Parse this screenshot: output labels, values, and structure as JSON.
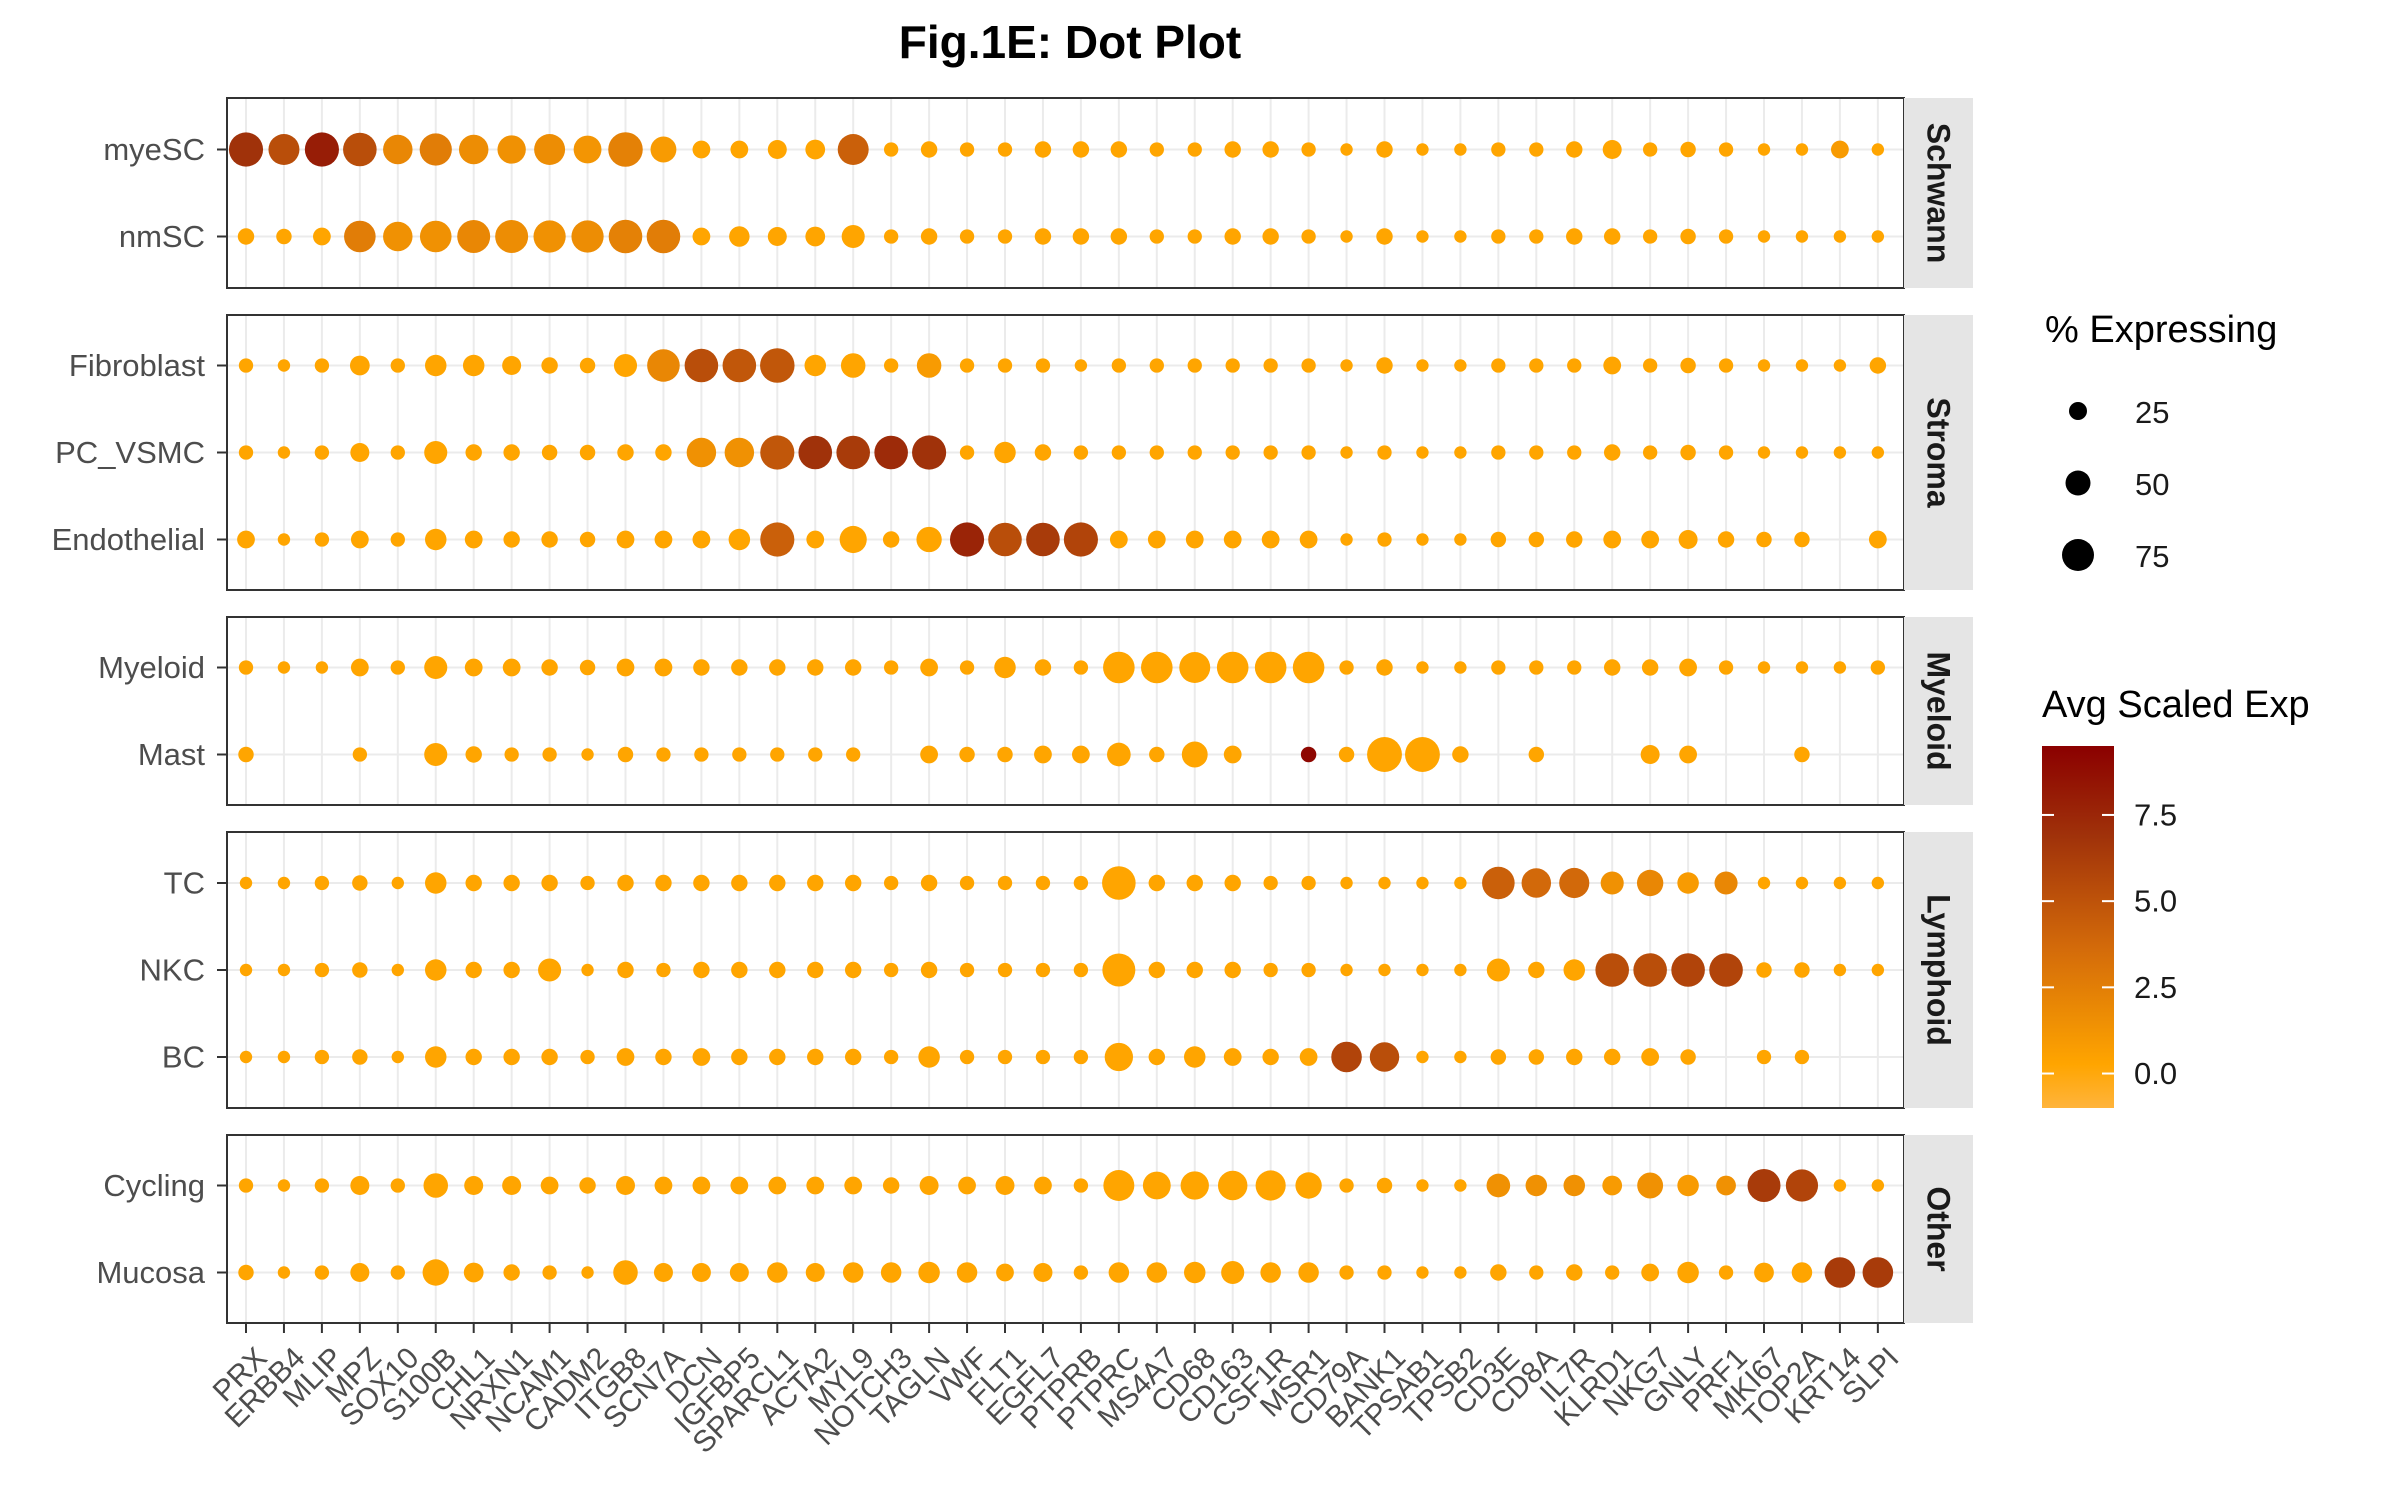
{
  "chart_data": {
    "type": "scatter",
    "title": "Fig.1E: Dot Plot",
    "xlabel": "",
    "ylabel": "",
    "genes": [
      "PRX",
      "ERBB4",
      "MLIP",
      "MPZ",
      "SOX10",
      "S100B",
      "CHL1",
      "NRXN1",
      "NCAM1",
      "CADM2",
      "ITGB8",
      "SCN7A",
      "DCN",
      "IGFBP5",
      "SPARCL1",
      "ACTA2",
      "MYL9",
      "NOTCH3",
      "TAGLN",
      "VWF",
      "FLT1",
      "EGFL7",
      "PTPRB",
      "PTPRC",
      "MS4A7",
      "CD68",
      "CD163",
      "CSF1R",
      "MSR1",
      "CD79A",
      "BANK1",
      "TPSAB1",
      "TPSB2",
      "CD3E",
      "CD8A",
      "IL7R",
      "KLRD1",
      "NKG7",
      "GNLY",
      "PRF1",
      "MKI67",
      "TOP2A",
      "KRT14",
      "SLPI"
    ],
    "facets": [
      {
        "name": "Schwann",
        "rows": [
          "myeSC",
          "nmSC"
        ]
      },
      {
        "name": "Stroma",
        "rows": [
          "Fibroblast",
          "PC_VSMC",
          "Endothelial"
        ]
      },
      {
        "name": "Myeloid",
        "rows": [
          "Myeloid",
          "Mast"
        ]
      },
      {
        "name": "Lymphoid",
        "rows": [
          "TC",
          "NKC",
          "BC"
        ]
      },
      {
        "name": "Other",
        "rows": [
          "Cycling",
          "Mucosa"
        ]
      }
    ],
    "size_legend": {
      "title": "% Expressing",
      "values": [
        25,
        50,
        75
      ]
    },
    "color_legend": {
      "title": "Avg Scaled Exp",
      "ticks": [
        7.5,
        5.0,
        2.5,
        0.0
      ],
      "tick_labels": [
        "7.5",
        "5.0",
        "2.5",
        "0.0"
      ],
      "range": [
        -1,
        9.5
      ],
      "colors": [
        "#FFB43C",
        "#FFA500",
        "#D2690A",
        "#A0320A",
        "#8B0000"
      ]
    },
    "pct_expressing": {
      "myeSC": [
        78,
        62,
        78,
        75,
        55,
        68,
        55,
        50,
        62,
        48,
        80,
        40,
        15,
        15,
        18,
        20,
        62,
        8,
        12,
        8,
        8,
        12,
        12,
        12,
        8,
        8,
        12,
        12,
        8,
        5,
        12,
        5,
        5,
        8,
        8,
        12,
        18,
        8,
        10,
        8,
        5,
        5,
        15,
        5
      ],
      "nmSC": [
        12,
        10,
        15,
        65,
        55,
        65,
        72,
        72,
        68,
        68,
        75,
        75,
        15,
        22,
        18,
        20,
        30,
        8,
        12,
        8,
        8,
        12,
        12,
        12,
        8,
        8,
        12,
        12,
        8,
        5,
        12,
        5,
        5,
        8,
        8,
        12,
        12,
        8,
        10,
        8,
        5,
        5,
        5,
        5
      ],
      "Fibroblast": [
        8,
        5,
        8,
        20,
        8,
        25,
        25,
        18,
        12,
        10,
        30,
        70,
        75,
        75,
        80,
        25,
        35,
        8,
        35,
        8,
        8,
        8,
        5,
        8,
        8,
        8,
        8,
        8,
        8,
        5,
        12,
        5,
        5,
        8,
        8,
        8,
        15,
        8,
        10,
        8,
        5,
        5,
        5,
        12
      ],
      "PC_VSMC": [
        8,
        5,
        8,
        18,
        8,
        30,
        12,
        12,
        10,
        10,
        12,
        12,
        55,
        55,
        78,
        75,
        75,
        75,
        78,
        8,
        25,
        12,
        8,
        8,
        8,
        8,
        8,
        8,
        8,
        5,
        8,
        5,
        5,
        8,
        8,
        8,
        12,
        8,
        10,
        8,
        5,
        5,
        5,
        5
      ],
      "Endothelial": [
        15,
        5,
        8,
        15,
        8,
        25,
        15,
        12,
        12,
        10,
        15,
        15,
        15,
        25,
        78,
        15,
        45,
        12,
        38,
        78,
        75,
        75,
        78,
        15,
        15,
        15,
        15,
        15,
        15,
        5,
        8,
        5,
        5,
        10,
        10,
        12,
        15,
        15,
        18,
        12,
        10,
        10,
        0,
        15
      ],
      "Myeloid": [
        8,
        5,
        5,
        15,
        8,
        30,
        15,
        15,
        12,
        10,
        15,
        15,
        12,
        12,
        12,
        12,
        12,
        8,
        15,
        8,
        25,
        12,
        8,
        65,
        65,
        62,
        65,
        65,
        65,
        8,
        12,
        5,
        5,
        8,
        8,
        8,
        12,
        12,
        15,
        8,
        5,
        5,
        5,
        8
      ],
      "Mast": [
        10,
        0,
        0,
        8,
        0,
        30,
        12,
        8,
        8,
        5,
        10,
        8,
        8,
        8,
        8,
        8,
        8,
        0,
        15,
        10,
        10,
        15,
        15,
        32,
        10,
        40,
        15,
        0,
        10,
        10,
        82,
        82,
        12,
        0,
        10,
        0,
        0,
        18,
        15,
        0,
        0,
        10,
        0,
        0
      ],
      "TC": [
        5,
        5,
        8,
        10,
        5,
        25,
        12,
        12,
        12,
        8,
        12,
        12,
        12,
        12,
        12,
        12,
        12,
        8,
        12,
        8,
        8,
        8,
        8,
        75,
        12,
        12,
        12,
        8,
        8,
        5,
        5,
        5,
        5,
        70,
        55,
        58,
        30,
        42,
        25,
        30,
        5,
        5,
        5,
        5
      ],
      "NKC": [
        5,
        5,
        8,
        10,
        5,
        25,
        12,
        12,
        30,
        5,
        12,
        8,
        12,
        12,
        12,
        12,
        12,
        8,
        12,
        8,
        8,
        8,
        8,
        72,
        12,
        12,
        12,
        8,
        8,
        5,
        5,
        5,
        5,
        30,
        12,
        25,
        75,
        75,
        75,
        75,
        10,
        10,
        5,
        5
      ],
      "BC": [
        5,
        5,
        8,
        10,
        5,
        25,
        12,
        12,
        12,
        8,
        15,
        12,
        15,
        12,
        12,
        12,
        12,
        8,
        25,
        8,
        8,
        8,
        8,
        50,
        12,
        25,
        15,
        12,
        15,
        60,
        55,
        5,
        5,
        10,
        10,
        12,
        12,
        15,
        10,
        0,
        8,
        8,
        0,
        0
      ],
      "Cycling": [
        8,
        5,
        8,
        18,
        8,
        35,
        18,
        18,
        15,
        12,
        18,
        15,
        15,
        15,
        15,
        15,
        15,
        12,
        18,
        15,
        18,
        15,
        8,
        62,
        48,
        50,
        55,
        58,
        42,
        8,
        10,
        5,
        5,
        32,
        25,
        25,
        20,
        40,
        25,
        20,
        72,
        68,
        5,
        5
      ],
      "Mucosa": [
        10,
        5,
        8,
        18,
        8,
        42,
        20,
        12,
        8,
        5,
        35,
        18,
        18,
        18,
        22,
        18,
        22,
        22,
        25,
        22,
        15,
        18,
        8,
        22,
        22,
        25,
        30,
        22,
        22,
        8,
        8,
        5,
        5,
        12,
        8,
        12,
        8,
        15,
        25,
        8,
        20,
        22,
        60,
        60
      ]
    },
    "avg_scaled_exp": {
      "myeSC": [
        6.0,
        4.5,
        7.5,
        4.5,
        1.5,
        2.0,
        1.2,
        1.0,
        1.2,
        0.8,
        1.8,
        0.5,
        0,
        0,
        0,
        0,
        3.5,
        0,
        0,
        0,
        0,
        0,
        0,
        0,
        0,
        0,
        0,
        0,
        0,
        0,
        0,
        0,
        0,
        0,
        0,
        0,
        0,
        0,
        0,
        0,
        0,
        0,
        0.5,
        0
      ],
      "nmSC": [
        0,
        0,
        0,
        2.0,
        1.0,
        1.0,
        1.5,
        1.2,
        1.0,
        1.2,
        1.8,
        2.0,
        0,
        0,
        0,
        0,
        0,
        0,
        0,
        0,
        0,
        0,
        0,
        0,
        0,
        0,
        0,
        0,
        0,
        0,
        0,
        0,
        0,
        0,
        0,
        0,
        0,
        0,
        0,
        0,
        0,
        0,
        0,
        0
      ],
      "Fibroblast": [
        0,
        0,
        0,
        0,
        0,
        0,
        0,
        0,
        0,
        0,
        0,
        1.5,
        4.5,
        4.0,
        4.0,
        0,
        0,
        0,
        0.5,
        0,
        0,
        0,
        0,
        0,
        0,
        0,
        0,
        0,
        0,
        0,
        0,
        0,
        0,
        0,
        0,
        0,
        0,
        0,
        0,
        0,
        0,
        0,
        0,
        0
      ],
      "PC_VSMC": [
        0,
        0,
        0,
        0,
        0,
        0,
        0,
        0,
        0,
        0,
        0,
        0,
        1.0,
        1.0,
        4.0,
        6.0,
        5.5,
        6.5,
        6.0,
        0,
        0,
        0,
        0,
        0,
        0,
        0,
        0,
        0,
        0,
        0,
        0,
        0,
        0,
        0,
        0,
        0,
        0,
        0,
        0,
        0,
        0,
        0,
        0,
        0
      ],
      "Endothelial": [
        0,
        0,
        0,
        0,
        0,
        0,
        0,
        0,
        0,
        0,
        0,
        0,
        0,
        0,
        3.5,
        0,
        0,
        0,
        0,
        7.0,
        4.5,
        5.5,
        5.0,
        0,
        0,
        0,
        0,
        0,
        0,
        0,
        0,
        0,
        0,
        0,
        0,
        0,
        0,
        0,
        0,
        0,
        0,
        0,
        0,
        0
      ],
      "Myeloid": [
        0,
        0,
        0,
        0,
        0,
        0,
        0,
        0,
        0,
        0,
        0,
        0,
        0,
        0,
        0,
        0,
        0,
        0,
        0,
        0,
        0,
        0,
        0,
        0,
        0,
        0,
        0,
        0,
        0,
        0,
        0,
        0,
        0,
        0,
        0,
        0,
        0,
        0,
        0,
        0,
        0,
        0,
        0,
        0
      ],
      "Mast": [
        0,
        0,
        0,
        0,
        0,
        0,
        0,
        0,
        0,
        0,
        0,
        0,
        0,
        0,
        0,
        0,
        0,
        0,
        0,
        0,
        0,
        0,
        0,
        0,
        0,
        0,
        0,
        9.0,
        9.0,
        0,
        0,
        0,
        0,
        0,
        0,
        0,
        0,
        0,
        0,
        0,
        0,
        0,
        0,
        0
      ],
      "TC": [
        0,
        0,
        0,
        0,
        0,
        0,
        0,
        0,
        0,
        0,
        0,
        0,
        0,
        0,
        0,
        0,
        0,
        0,
        0,
        0,
        0,
        0,
        0,
        0,
        0,
        0,
        0,
        0,
        0,
        0,
        0,
        0,
        0,
        3.5,
        3.0,
        3.0,
        1.0,
        1.5,
        0.5,
        1.5,
        0,
        0,
        0,
        0
      ],
      "NKC": [
        0,
        0,
        0,
        0,
        0,
        0,
        0,
        0,
        0,
        0,
        0,
        0,
        0,
        0,
        0,
        0,
        0,
        0,
        0,
        0,
        0,
        0,
        0,
        0,
        0,
        0,
        0,
        0,
        0,
        0,
        0,
        0,
        0,
        0,
        0,
        0,
        4.5,
        4.5,
        5.0,
        5.0,
        0,
        0,
        0,
        0
      ],
      "BC": [
        0,
        0,
        0,
        0,
        0,
        0,
        0,
        0,
        0,
        0,
        0,
        0,
        0,
        0,
        0,
        0,
        0,
        0,
        0,
        0,
        0,
        0,
        0,
        0,
        0,
        0,
        0,
        0,
        0,
        5.0,
        4.5,
        0,
        0,
        0,
        0,
        0,
        0,
        0,
        0,
        0,
        0,
        0,
        0,
        0
      ],
      "Cycling": [
        0,
        0,
        0,
        0,
        0,
        0,
        0,
        0,
        0,
        0,
        0,
        0,
        0,
        0,
        0,
        0,
        0,
        0,
        0,
        0,
        0,
        0,
        0,
        0,
        0,
        0,
        0,
        0,
        0,
        0,
        0,
        0,
        0,
        1.0,
        1.0,
        1.0,
        0.5,
        1.0,
        0.5,
        1.0,
        5.5,
        5.0,
        0,
        0
      ],
      "Mucosa": [
        0,
        0,
        0,
        0,
        0,
        0,
        0,
        0,
        0,
        0,
        0,
        0,
        0,
        0,
        0,
        0,
        0,
        0,
        0,
        0,
        0,
        0,
        0,
        0,
        0,
        0,
        0,
        0,
        0,
        0,
        0,
        0,
        0,
        0,
        0,
        0,
        0,
        0,
        0,
        0,
        0,
        0,
        5.5,
        5.5
      ]
    },
    "grid": true,
    "legend_position": "right"
  }
}
